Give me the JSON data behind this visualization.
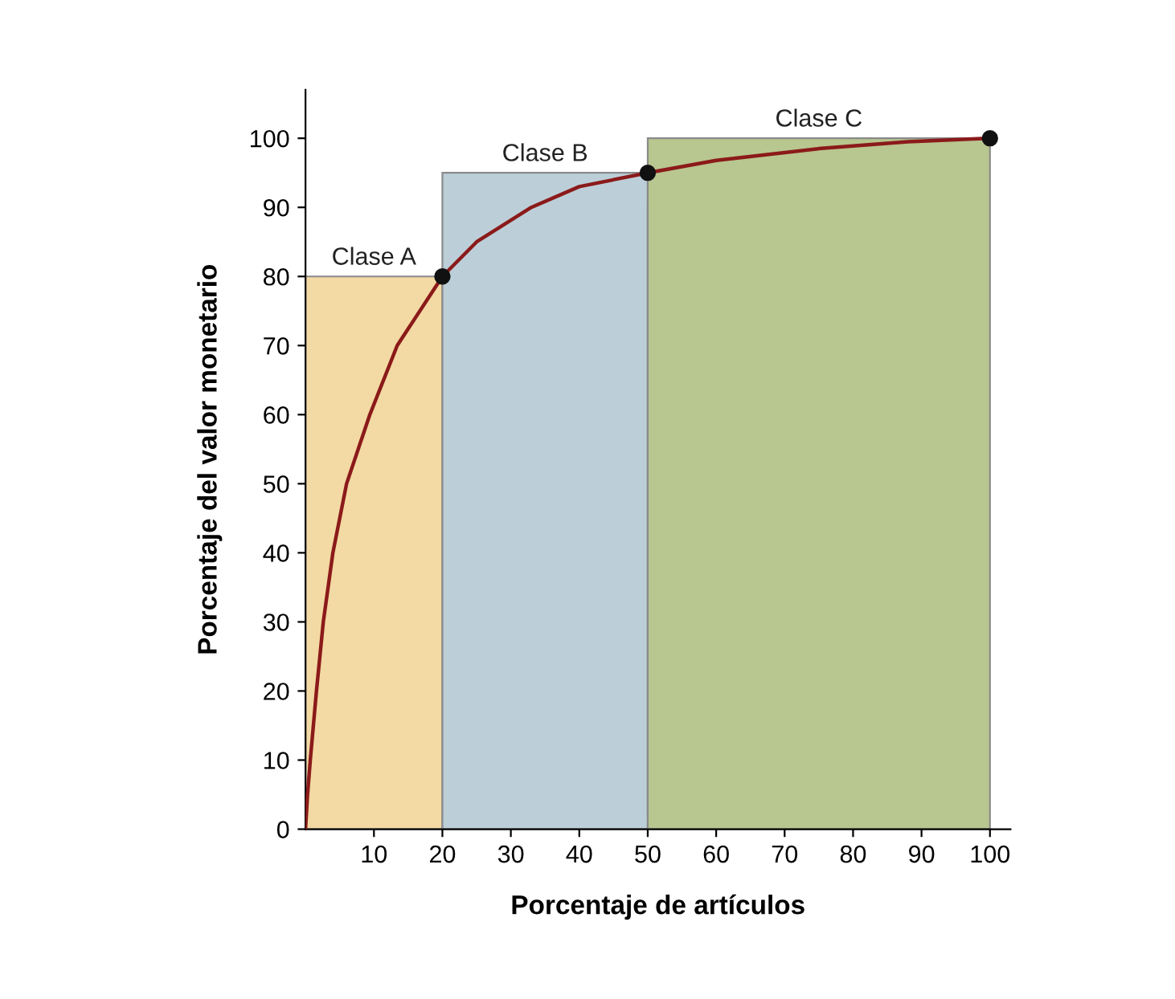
{
  "chart_data": {
    "type": "histogram",
    "xlabel": "Porcentaje de artículos",
    "ylabel": "Porcentaje del valor monetario",
    "bins": [
      0,
      20,
      50,
      100
    ],
    "values": [
      80,
      95,
      100
    ],
    "colors": [
      "#f3d9a3",
      "#bccfd8",
      "#b8c68f"
    ],
    "series": [
      {
        "type": "line",
        "color": "#8b1a1a",
        "x": [
          0,
          0.3,
          0.7,
          1.6,
          2.6,
          4,
          6,
          9.4,
          13.4,
          20,
          25,
          33,
          40,
          50,
          60,
          75,
          88,
          100
        ],
        "values": [
          0,
          5,
          10,
          20,
          30,
          40,
          50,
          60,
          70,
          80,
          85,
          90,
          93,
          95,
          96.8,
          98.5,
          99.5,
          100
        ]
      },
      {
        "type": "scatter",
        "color": "#111111",
        "x": [
          20,
          50,
          100
        ],
        "values": [
          80,
          95,
          100
        ]
      }
    ],
    "annotations": [
      "Clase A",
      "Clase B",
      "Clase C"
    ],
    "xlim": [
      0,
      103
    ],
    "ylim": [
      0,
      107
    ],
    "xticks": [
      10,
      20,
      30,
      40,
      50,
      60,
      70,
      80,
      90,
      100
    ],
    "yticks": [
      0,
      10,
      20,
      30,
      40,
      50,
      60,
      70,
      80,
      90,
      100
    ],
    "grid": false,
    "legend": false
  }
}
